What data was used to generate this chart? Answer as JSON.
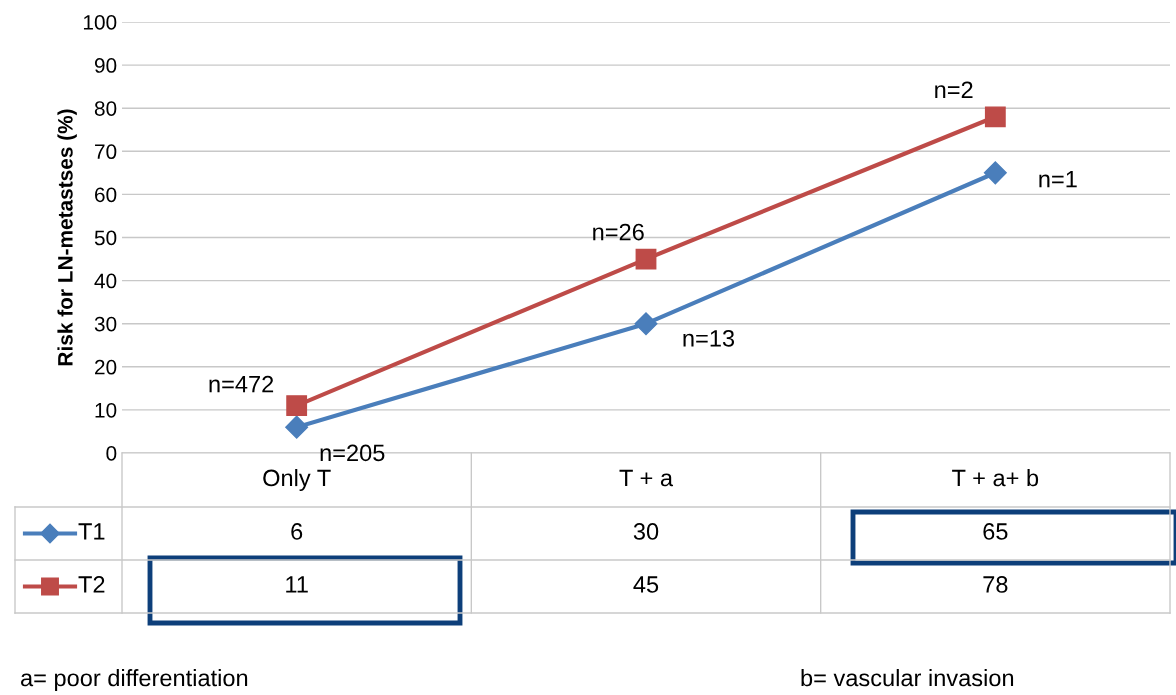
{
  "chart_data": {
    "type": "line",
    "ylabel": "Risk for LN-metastses (%)",
    "categories": [
      "Only T",
      "T + a",
      "T + a+ b"
    ],
    "series": [
      {
        "name": "T1",
        "color": "#4a7ebb",
        "marker": "diamond",
        "values": [
          6,
          30,
          65
        ]
      },
      {
        "name": "T2",
        "color": "#be4b48",
        "marker": "square",
        "values": [
          11,
          45,
          78
        ]
      }
    ],
    "ylim": [
      0,
      100
    ],
    "yticks": [
      0,
      10,
      20,
      30,
      40,
      50,
      60,
      70,
      80,
      90,
      100
    ],
    "grid": "y",
    "data_labels": true,
    "legend": "bottom",
    "annotations": [
      {
        "text": "n=472",
        "x": "Only T",
        "y": 11
      },
      {
        "text": "n=205",
        "x": "Only T",
        "y": 6
      },
      {
        "text": "n=26",
        "x": "T + a",
        "y": 45
      },
      {
        "text": "n=13",
        "x": "T + a",
        "y": 30
      },
      {
        "text": "n=2",
        "x": "T + a+ b",
        "y": 78
      },
      {
        "text": "n=1",
        "x": "T + a+ b",
        "y": 65
      },
      "a= poor differentiation",
      "b= vascular invasion"
    ]
  }
}
